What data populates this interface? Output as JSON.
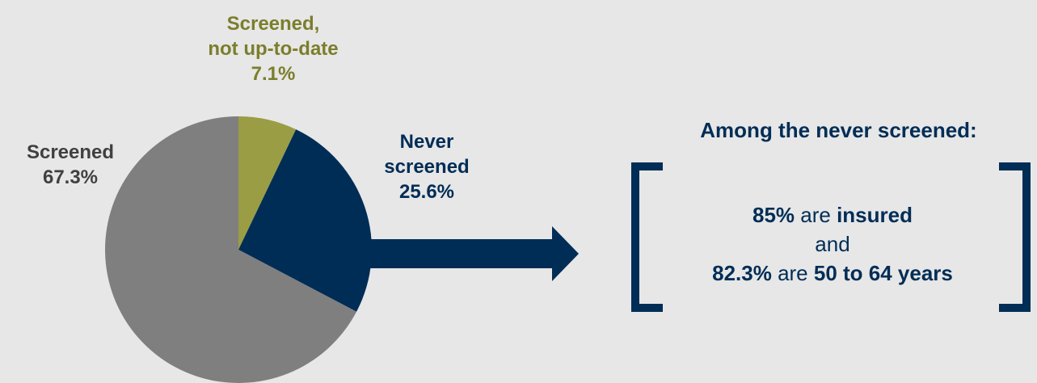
{
  "chart_data": {
    "type": "pie",
    "slices": [
      {
        "label_lines": [
          "Screened,",
          "not up-to-date"
        ],
        "value": 7.1,
        "value_text": "7.1%",
        "color": "#9a9d44"
      },
      {
        "label_lines": [
          "Never",
          "screened"
        ],
        "value": 25.6,
        "value_text": "25.6%",
        "color": "#002d56"
      },
      {
        "label_lines": [
          "Screened"
        ],
        "value": 67.3,
        "value_text": "67.3%",
        "color": "#7f7f7f"
      }
    ],
    "label_colors": [
      "#7b7e2c",
      "#002d56",
      "#404040"
    ]
  },
  "callout": {
    "title": "Among the never screened:",
    "line1": {
      "pct": "85%",
      "mid": " are ",
      "tail": "insured"
    },
    "line2": "and",
    "line3": {
      "pct": "82.3%",
      "mid": " are ",
      "tail": "50 to 64 years"
    },
    "color": "#002d56"
  }
}
